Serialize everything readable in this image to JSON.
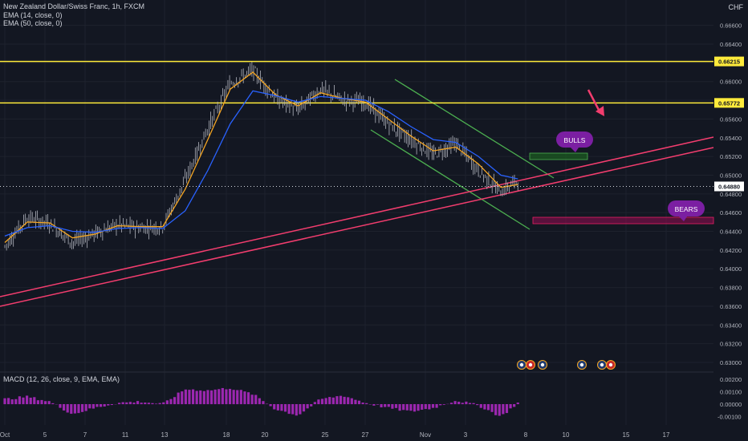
{
  "legend": {
    "title": "New Zealand Dollar/Swiss Franc, 1h, FXCM",
    "ema1": "EMA (14, close, 0)",
    "ema2": "EMA (50, close, 0)",
    "macd": "MACD (12, 26, close, 9, EMA, EMA)"
  },
  "currency": "CHF",
  "colors": {
    "background": "#131722",
    "price": "#b2b5be",
    "ema14": "#f5a623",
    "ema50": "#2962ff",
    "support_lines": "#f23d6e",
    "horizontal_levels": "#ffeb3b",
    "channel": "#4caf50",
    "macd": "#9c27b0",
    "bulls_label": "#7b1fa2",
    "bears_label": "#7b1fa2"
  },
  "chart_data": [
    {
      "type": "line",
      "title": "New Zealand Dollar/Swiss Franc, 1h, FXCM",
      "x_ticks": [
        "Oct",
        "5",
        "7",
        "11",
        "13",
        "18",
        "20",
        "25",
        "27",
        "Nov",
        "3",
        "8",
        "10",
        "15",
        "17"
      ],
      "y_ticks": [
        "0.66600",
        "0.66400",
        "0.66200",
        "0.66000",
        "0.65800",
        "0.65600",
        "0.65400",
        "0.65200",
        "0.65000",
        "0.64800",
        "0.64600",
        "0.64400",
        "0.64200",
        "0.64000",
        "0.63800",
        "0.63600",
        "0.63400",
        "0.63200",
        "0.63000"
      ],
      "ylim": [
        0.629,
        0.6683
      ],
      "grid": true,
      "series": [
        {
          "name": "NZDCHF",
          "x": [
            0,
            2,
            4,
            6,
            8,
            10,
            12,
            14,
            16,
            18,
            20,
            22,
            24,
            26,
            28,
            30,
            32,
            34,
            36,
            38,
            40,
            42,
            44,
            45.5
          ],
          "y": [
            0.6424,
            0.6455,
            0.6448,
            0.6428,
            0.6438,
            0.6447,
            0.6444,
            0.6445,
            0.6495,
            0.655,
            0.6598,
            0.6612,
            0.6582,
            0.657,
            0.6592,
            0.658,
            0.6578,
            0.6555,
            0.6538,
            0.6522,
            0.6534,
            0.6505,
            0.6482,
            0.6495
          ]
        },
        {
          "name": "EMA (14, close, 0)",
          "x": [
            0,
            2,
            4,
            6,
            8,
            10,
            12,
            14,
            16,
            18,
            20,
            22,
            24,
            26,
            28,
            30,
            32,
            34,
            36,
            38,
            40,
            42,
            44,
            45.5
          ],
          "y": [
            0.6428,
            0.645,
            0.6449,
            0.6433,
            0.6437,
            0.6446,
            0.6445,
            0.6445,
            0.6485,
            0.6538,
            0.6592,
            0.661,
            0.6586,
            0.6574,
            0.6588,
            0.6582,
            0.6578,
            0.656,
            0.6542,
            0.6526,
            0.653,
            0.6512,
            0.6487,
            0.649
          ]
        },
        {
          "name": "EMA (50, close, 0)",
          "x": [
            0,
            2,
            4,
            6,
            8,
            10,
            12,
            14,
            16,
            18,
            20,
            22,
            24,
            26,
            28,
            30,
            32,
            34,
            36,
            38,
            40,
            42,
            44,
            45.5
          ],
          "y": [
            0.6435,
            0.6444,
            0.6446,
            0.644,
            0.6439,
            0.6443,
            0.6444,
            0.6443,
            0.6462,
            0.6505,
            0.6555,
            0.659,
            0.6585,
            0.6578,
            0.6584,
            0.6582,
            0.658,
            0.6568,
            0.6552,
            0.6538,
            0.6535,
            0.652,
            0.65,
            0.6496
          ]
        }
      ],
      "horizontal_levels": [
        0.66215,
        0.65772
      ],
      "price_labels": [
        "0.66215",
        "0.65772",
        "0.64880"
      ],
      "current_price": 0.6488,
      "annotations": [
        "BULLS",
        "BEARS"
      ]
    },
    {
      "type": "area",
      "title": "MACD (12, 26, close, 9, EMA, EMA)",
      "y_ticks": [
        "0.00200",
        "0.00100",
        "0.00000",
        "-0.00100"
      ],
      "ylim": [
        -0.0013,
        0.0021
      ],
      "series": [
        {
          "name": "MACD",
          "x": [
            0,
            2,
            4,
            6,
            8,
            10,
            12,
            14,
            16,
            18,
            20,
            22,
            24,
            26,
            28,
            30,
            32,
            34,
            36,
            38,
            40,
            42,
            44,
            45.5
          ],
          "y": [
            0.0004,
            0.0006,
            0.0002,
            -0.0008,
            -0.0003,
            0.0001,
            0.0002,
            0.0,
            0.0012,
            0.0011,
            0.0013,
            0.0008,
            -0.0004,
            -0.0009,
            0.0004,
            0.0007,
            0.0001,
            -0.0003,
            -0.0006,
            -0.0003,
            0.0003,
            -0.0001,
            -0.001,
            0.0001
          ]
        }
      ]
    }
  ]
}
